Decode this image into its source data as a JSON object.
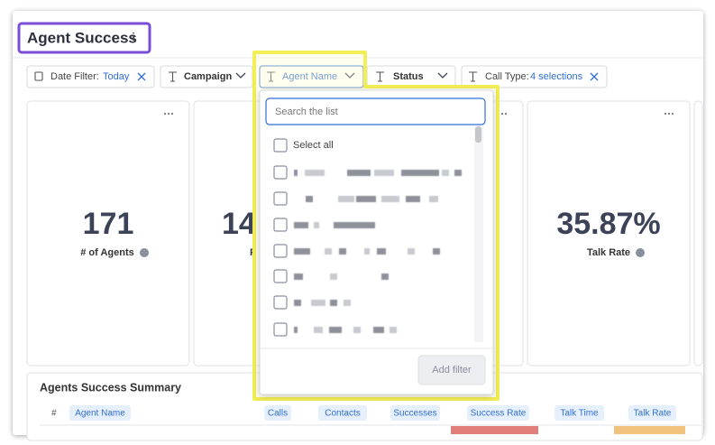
{
  "header": {
    "title": "Agent Success",
    "info": "i"
  },
  "filters": [
    {
      "label": "Date Filter:",
      "value": "Today"
    },
    {
      "label": "Campaign"
    },
    {
      "label": "Agent Name"
    },
    {
      "label": "Status"
    },
    {
      "label": "Call Type:",
      "value": "4 selections"
    }
  ],
  "cards": [
    {
      "value": "171",
      "label": "# of Agents"
    },
    {
      "value": "14",
      "label": "P"
    },
    {
      "value": "35.87%",
      "label": "Talk Rate"
    }
  ],
  "dropdown": {
    "search_placeholder": "Search the list",
    "select_all": "Select all",
    "button": "Add filter"
  },
  "table": {
    "title": "Agents Success Summary",
    "columns": [
      "#",
      "Agent Name",
      "Calls",
      "Contacts",
      "Successes",
      "Success Rate",
      "Talk Time",
      "Talk Rate"
    ]
  }
}
